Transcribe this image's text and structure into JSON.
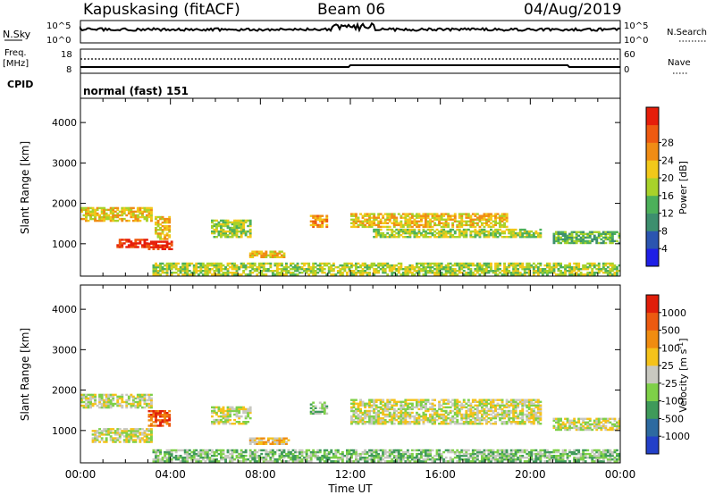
{
  "header": {
    "station": "Kapuskasing (fitACF)",
    "beam": "Beam 06",
    "date": "04/Aug/2019"
  },
  "top_panels": {
    "nsky_label": "N.Sky",
    "nsky_ticks": [
      "10^5",
      "10^0"
    ],
    "nsearch_label": "N.Search",
    "nsearch_ticks": [
      "10^5",
      "10^0"
    ],
    "freq_label_1": "Freq.",
    "freq_label_2": "[MHz]",
    "freq_ticks": [
      "18",
      "8"
    ],
    "nave_label": "Nave",
    "nave_ticks": [
      "60",
      "0"
    ],
    "cpid_label": "CPID",
    "cpid_text": "normal (fast) 151"
  },
  "chart_data": [
    {
      "type": "heatmap",
      "quantity": "power",
      "ylabel": "Slant Range [km]",
      "xlabel": "Time UT",
      "x_ticks": [
        "00:00",
        "04:00",
        "08:00",
        "12:00",
        "16:00",
        "20:00",
        "00:00"
      ],
      "y_ticks": [
        "1000",
        "2000",
        "3000",
        "4000"
      ],
      "ylim": [
        200,
        4600
      ],
      "colorbar": {
        "label": "Power [dB]",
        "ticks": [
          "4",
          "8",
          "12",
          "16",
          "20",
          "24",
          "28"
        ],
        "colors": [
          "#1f1fe6",
          "#2b55b0",
          "#3d8f6e",
          "#4cb05a",
          "#a8d22a",
          "#f2c81a",
          "#f08c14",
          "#ee5a10",
          "#e61e0a"
        ]
      },
      "regions": [
        {
          "t0": 0.0,
          "t1": 3.2,
          "r0": 1550,
          "r1": 1900,
          "level": 5
        },
        {
          "t0": 1.6,
          "t1": 3.0,
          "r0": 900,
          "r1": 1100,
          "level": 8
        },
        {
          "t0": 3.0,
          "t1": 4.1,
          "r0": 850,
          "r1": 1050,
          "level": 8
        },
        {
          "t0": 3.3,
          "t1": 4.0,
          "r0": 1100,
          "r1": 1650,
          "level": 5
        },
        {
          "t0": 5.8,
          "t1": 7.5,
          "r0": 1150,
          "r1": 1600,
          "level": 4
        },
        {
          "t0": 7.5,
          "t1": 9.0,
          "r0": 650,
          "r1": 800,
          "level": 5
        },
        {
          "t0": 10.2,
          "t1": 10.9,
          "r0": 1400,
          "r1": 1700,
          "level": 6
        },
        {
          "t0": 12.0,
          "t1": 19.0,
          "r0": 1400,
          "r1": 1750,
          "level": 5
        },
        {
          "t0": 13.0,
          "t1": 20.5,
          "r0": 1150,
          "r1": 1350,
          "level": 4
        },
        {
          "t0": 21.0,
          "t1": 24.0,
          "r0": 1000,
          "r1": 1300,
          "level": 3
        },
        {
          "t0": 3.2,
          "t1": 24.0,
          "r0": 220,
          "r1": 520,
          "level": 4
        }
      ]
    },
    {
      "type": "heatmap",
      "quantity": "velocity",
      "ylabel": "Slant Range [km]",
      "xlabel": "Time UT",
      "x_ticks": [
        "00:00",
        "04:00",
        "08:00",
        "12:00",
        "16:00",
        "20:00",
        "00:00"
      ],
      "y_ticks": [
        "1000",
        "2000",
        "3000",
        "4000"
      ],
      "ylim": [
        200,
        4600
      ],
      "colorbar": {
        "label": "Velocity [m s",
        "label_sup": "-1",
        "label_end": "]",
        "ticks": [
          "1000",
          "500",
          "100",
          "25",
          "-25",
          "-100",
          "-500",
          "-1000"
        ],
        "colors": [
          "#2340c8",
          "#2d6aa0",
          "#3f9a5a",
          "#7ed048",
          "#c8c8c0",
          "#f5c21a",
          "#f08c10",
          "#ec5a10",
          "#e01e0a"
        ]
      },
      "regions": [
        {
          "t0": 0.0,
          "t1": 3.2,
          "r0": 1550,
          "r1": 1900,
          "level": 4
        },
        {
          "t0": 0.5,
          "t1": 3.2,
          "r0": 700,
          "r1": 1050,
          "level": 4
        },
        {
          "t0": 3.0,
          "t1": 4.0,
          "r0": 1100,
          "r1": 1500,
          "level": 7
        },
        {
          "t0": 5.8,
          "t1": 7.5,
          "r0": 1150,
          "r1": 1600,
          "level": 4
        },
        {
          "t0": 7.5,
          "t1": 9.2,
          "r0": 650,
          "r1": 800,
          "level": 5
        },
        {
          "t0": 10.2,
          "t1": 10.9,
          "r0": 1400,
          "r1": 1700,
          "level": 3
        },
        {
          "t0": 12.0,
          "t1": 20.5,
          "r0": 1150,
          "r1": 1750,
          "level": 4
        },
        {
          "t0": 21.0,
          "t1": 24.0,
          "r0": 1000,
          "r1": 1300,
          "level": 4
        },
        {
          "t0": 3.2,
          "t1": 24.0,
          "r0": 220,
          "r1": 520,
          "level": 3
        }
      ]
    }
  ]
}
